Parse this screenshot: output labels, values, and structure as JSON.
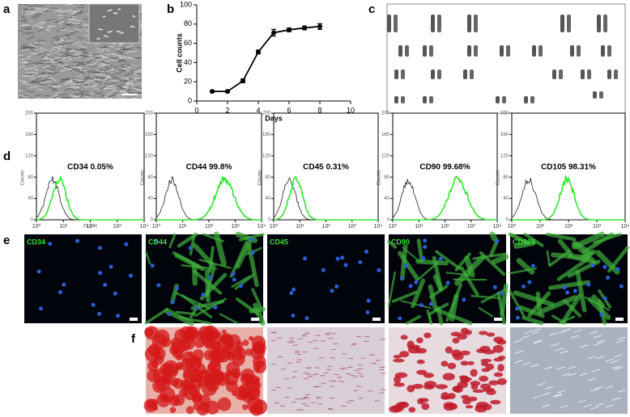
{
  "panel_labels": [
    "a",
    "b",
    "c",
    "d",
    "e",
    "f"
  ],
  "chart_data": {
    "type": "line",
    "x": [
      1,
      2,
      3,
      4,
      5,
      6,
      7,
      8
    ],
    "values": [
      10,
      10,
      21,
      51,
      71,
      74,
      76,
      77.5
    ],
    "errors": [
      1,
      1,
      2,
      2,
      3.5,
      2,
      2,
      3
    ],
    "xlim": [
      0,
      10
    ],
    "ylim": [
      0,
      100
    ],
    "xticks": [
      0,
      2,
      4,
      6,
      8,
      10
    ],
    "yticks": [
      0,
      20,
      40,
      60,
      80,
      100
    ],
    "xlabel": "Days",
    "ylabel": "Cell counts",
    "color": "#000000"
  },
  "flow_cytometry": {
    "ylabel": "Counts",
    "xlabel": "FL1-H",
    "ylim": [
      0,
      200
    ],
    "yticks": [
      0,
      40,
      80,
      120,
      160,
      200
    ],
    "xlim": [
      0,
      4
    ],
    "xticks": [
      {
        "value": 0,
        "label": "10⁰"
      },
      {
        "value": 1,
        "label": "10¹"
      },
      {
        "value": 2,
        "label": "10²"
      },
      {
        "value": 3,
        "label": "10³"
      },
      {
        "value": 4,
        "label": "10⁴"
      }
    ],
    "color": "#2ee62e",
    "plots": [
      {
        "label": "CD34  0.05%"
      },
      {
        "label": "CD44  99.8%"
      },
      {
        "label": "CD45 0.31%"
      },
      {
        "label": "CD90 99.68%"
      },
      {
        "label": "CD105 98.31%"
      }
    ]
  },
  "immunofluorescence": {
    "labels": [
      "CD34",
      "CD44",
      "CD45",
      "CD90",
      "CD105"
    ]
  }
}
